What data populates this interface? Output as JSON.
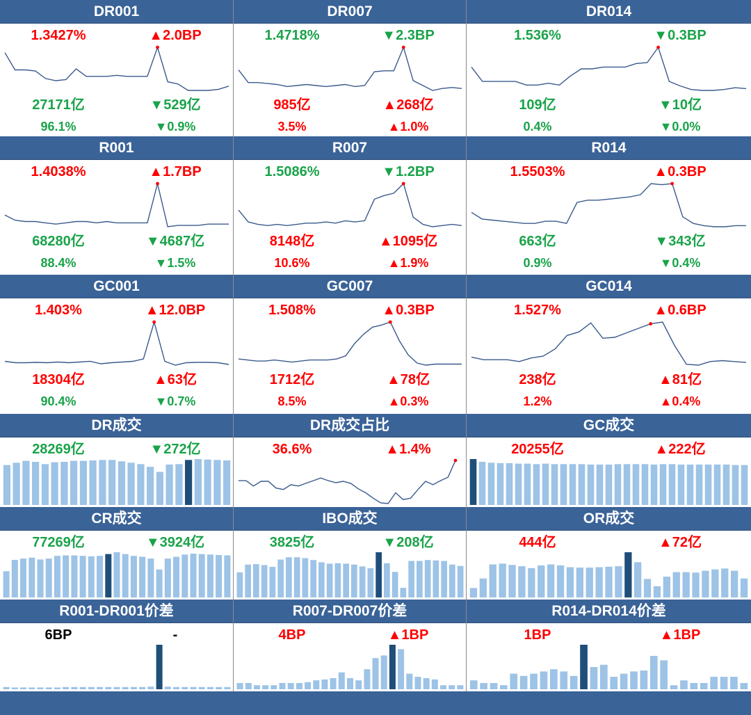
{
  "colors": {
    "header": "#3a6398",
    "line": "#3a5a8c",
    "bar": "#9dc3e6",
    "bar_highlight": "#1f4e79",
    "red": "#ff0000",
    "green": "#1aa34a",
    "marker": "#ff0000"
  },
  "panels": [
    {
      "id": "dr001",
      "title": "DR001",
      "rate": {
        "text": "1.3427%",
        "color": "red"
      },
      "change": {
        "text": "▲2.0BP",
        "color": "red"
      },
      "volume": {
        "text": "27171亿",
        "color": "green"
      },
      "volume_change": {
        "text": "▼529亿",
        "color": "green"
      },
      "share": {
        "text": "96.1%",
        "color": "green"
      },
      "share_change": {
        "text": "▼0.9%",
        "color": "green"
      },
      "chart_data": {
        "type": "line",
        "values": [
          1.338,
          1.322,
          1.322,
          1.321,
          1.314,
          1.312,
          1.313,
          1.323,
          1.316,
          1.316,
          1.316,
          1.317,
          1.316,
          1.316,
          1.316,
          1.343,
          1.311,
          1.309,
          1.303,
          1.303,
          1.303,
          1.304,
          1.307
        ],
        "marker_index": 15
      }
    },
    {
      "id": "dr007",
      "title": "DR007",
      "rate": {
        "text": "1.4718%",
        "color": "green"
      },
      "change": {
        "text": "▼2.3BP",
        "color": "green"
      },
      "volume": {
        "text": "985亿",
        "color": "red"
      },
      "volume_change": {
        "text": "▲268亿",
        "color": "red"
      },
      "share": {
        "text": "3.5%",
        "color": "red"
      },
      "share_change": {
        "text": "▲1.0%",
        "color": "red"
      },
      "chart_data": {
        "type": "line",
        "values": [
          1.449,
          1.436,
          1.436,
          1.435,
          1.434,
          1.432,
          1.433,
          1.434,
          1.433,
          1.432,
          1.433,
          1.434,
          1.432,
          1.433,
          1.447,
          1.448,
          1.448,
          1.472,
          1.438,
          1.433,
          1.428,
          1.43,
          1.431,
          1.43
        ],
        "marker_index": 17
      }
    },
    {
      "id": "dr014",
      "title": "DR014",
      "rate": {
        "text": "1.536%",
        "color": "green"
      },
      "change": {
        "text": "▼0.3BP",
        "color": "green"
      },
      "volume": {
        "text": "109亿",
        "color": "green"
      },
      "volume_change": {
        "text": "▼10亿",
        "color": "green"
      },
      "share": {
        "text": "0.4%",
        "color": "green"
      },
      "share_change": {
        "text": "▼0.0%",
        "color": "green"
      },
      "chart_data": {
        "type": "line",
        "values": [
          1.514,
          1.498,
          1.498,
          1.498,
          1.498,
          1.494,
          1.494,
          1.496,
          1.494,
          1.504,
          1.512,
          1.512,
          1.514,
          1.514,
          1.514,
          1.518,
          1.519,
          1.536,
          1.498,
          1.493,
          1.489,
          1.488,
          1.488,
          1.489,
          1.491,
          1.49
        ],
        "marker_index": 17
      }
    },
    {
      "id": "r001",
      "title": "R001",
      "rate": {
        "text": "1.4038%",
        "color": "red"
      },
      "change": {
        "text": "▲1.7BP",
        "color": "red"
      },
      "volume": {
        "text": "68280亿",
        "color": "green"
      },
      "volume_change": {
        "text": "▼4687亿",
        "color": "green"
      },
      "share": {
        "text": "88.4%",
        "color": "green"
      },
      "share_change": {
        "text": "▼1.5%",
        "color": "green"
      },
      "chart_data": {
        "type": "line",
        "values": [
          1.38,
          1.376,
          1.375,
          1.375,
          1.374,
          1.373,
          1.374,
          1.375,
          1.375,
          1.374,
          1.375,
          1.374,
          1.374,
          1.374,
          1.374,
          1.404,
          1.371,
          1.372,
          1.372,
          1.372,
          1.373,
          1.373,
          1.373
        ],
        "marker_index": 15
      }
    },
    {
      "id": "r007",
      "title": "R007",
      "rate": {
        "text": "1.5086%",
        "color": "green"
      },
      "change": {
        "text": "▼1.2BP",
        "color": "green"
      },
      "volume": {
        "text": "8148亿",
        "color": "red"
      },
      "volume_change": {
        "text": "▲1095亿",
        "color": "red"
      },
      "share": {
        "text": "10.6%",
        "color": "red"
      },
      "share_change": {
        "text": "▲1.9%",
        "color": "red"
      },
      "chart_data": {
        "type": "line",
        "values": [
          1.486,
          1.476,
          1.474,
          1.473,
          1.474,
          1.473,
          1.474,
          1.475,
          1.475,
          1.476,
          1.475,
          1.477,
          1.476,
          1.477,
          1.495,
          1.498,
          1.5,
          1.508,
          1.48,
          1.474,
          1.472,
          1.473,
          1.474,
          1.473
        ],
        "marker_index": 17
      }
    },
    {
      "id": "r014",
      "title": "R014",
      "rate": {
        "text": "1.5503%",
        "color": "red"
      },
      "change": {
        "text": "▲0.3BP",
        "color": "red"
      },
      "volume": {
        "text": "663亿",
        "color": "green"
      },
      "volume_change": {
        "text": "▼343亿",
        "color": "green"
      },
      "share": {
        "text": "0.9%",
        "color": "green"
      },
      "share_change": {
        "text": "▼0.4%",
        "color": "green"
      },
      "chart_data": {
        "type": "line",
        "values": [
          1.524,
          1.518,
          1.517,
          1.516,
          1.515,
          1.514,
          1.514,
          1.516,
          1.516,
          1.514,
          1.533,
          1.535,
          1.535,
          1.536,
          1.537,
          1.538,
          1.54,
          1.55,
          1.549,
          1.55,
          1.52,
          1.514,
          1.512,
          1.511,
          1.511,
          1.512,
          1.512
        ],
        "marker_index": 19
      }
    },
    {
      "id": "gc001",
      "title": "GC001",
      "rate": {
        "text": "1.403%",
        "color": "red"
      },
      "change": {
        "text": "▲12.0BP",
        "color": "red"
      },
      "volume": {
        "text": "18304亿",
        "color": "red"
      },
      "volume_change": {
        "text": "▲63亿",
        "color": "red"
      },
      "share": {
        "text": "90.4%",
        "color": "green"
      },
      "share_change": {
        "text": "▼0.7%",
        "color": "green"
      },
      "chart_data": {
        "type": "line",
        "values": [
          1.29,
          1.286,
          1.286,
          1.287,
          1.286,
          1.288,
          1.286,
          1.288,
          1.29,
          1.283,
          1.286,
          1.288,
          1.29,
          1.297,
          1.403,
          1.29,
          1.279,
          1.286,
          1.287,
          1.287,
          1.286,
          1.281
        ],
        "marker_index": 14
      }
    },
    {
      "id": "gc007",
      "title": "GC007",
      "rate": {
        "text": "1.508%",
        "color": "red"
      },
      "change": {
        "text": "▲0.3BP",
        "color": "red"
      },
      "volume": {
        "text": "1712亿",
        "color": "red"
      },
      "volume_change": {
        "text": "▲78亿",
        "color": "red"
      },
      "share": {
        "text": "8.5%",
        "color": "red"
      },
      "share_change": {
        "text": "▲0.3%",
        "color": "red"
      },
      "chart_data": {
        "type": "line",
        "values": [
          1.472,
          1.471,
          1.47,
          1.47,
          1.471,
          1.47,
          1.469,
          1.47,
          1.471,
          1.471,
          1.471,
          1.472,
          1.475,
          1.487,
          1.496,
          1.503,
          1.505,
          1.508,
          1.49,
          1.476,
          1.468,
          1.466,
          1.467,
          1.467,
          1.467,
          1.467
        ],
        "marker_index": 17
      }
    },
    {
      "id": "gc014",
      "title": "GC014",
      "rate": {
        "text": "1.527%",
        "color": "red"
      },
      "change": {
        "text": "▲0.6BP",
        "color": "red"
      },
      "volume": {
        "text": "238亿",
        "color": "red"
      },
      "volume_change": {
        "text": "▲81亿",
        "color": "red"
      },
      "share": {
        "text": "1.2%",
        "color": "red"
      },
      "share_change": {
        "text": "▲0.4%",
        "color": "red"
      },
      "chart_data": {
        "type": "line",
        "values": [
          1.49,
          1.487,
          1.487,
          1.487,
          1.485,
          1.489,
          1.491,
          1.499,
          1.514,
          1.518,
          1.528,
          1.511,
          1.512,
          1.517,
          1.522,
          1.527,
          1.529,
          1.503,
          1.482,
          1.481,
          1.485,
          1.486,
          1.485,
          1.484
        ],
        "marker_index": 15
      }
    },
    {
      "id": "dr-volume",
      "title": "DR成交",
      "rate": {
        "text": "28269亿",
        "color": "green"
      },
      "change": {
        "text": "▼272亿",
        "color": "green"
      },
      "chart_data": {
        "type": "bar",
        "values": [
          87,
          92,
          96,
          94,
          89,
          93,
          94,
          96,
          96,
          97,
          98,
          98,
          95,
          92,
          89,
          83,
          72,
          88,
          89,
          98,
          100,
          99,
          98,
          97
        ],
        "highlight_index": 19
      }
    },
    {
      "id": "dr-share",
      "title": "DR成交占比",
      "rate": {
        "text": "36.6%",
        "color": "red"
      },
      "change": {
        "text": "▲1.4%",
        "color": "red"
      },
      "chart_data": {
        "type": "line",
        "values": [
          33.6,
          33.6,
          32.8,
          33.5,
          33.5,
          32.5,
          32.3,
          33.0,
          32.8,
          33.2,
          33.6,
          34.0,
          33.6,
          33.3,
          33.5,
          33.2,
          32.4,
          31.8,
          31.0,
          30.3,
          30.2,
          31.8,
          30.8,
          31.0,
          32.3,
          33.5,
          33.0,
          33.6,
          34.1,
          36.6
        ],
        "marker_index": 29
      }
    },
    {
      "id": "gc-volume",
      "title": "GC成交",
      "rate": {
        "text": "20255亿",
        "color": "red"
      },
      "change": {
        "text": "▲222亿",
        "color": "red"
      },
      "chart_data": {
        "type": "bar",
        "values": [
          100,
          94,
          92,
          91,
          91,
          90,
          90,
          89,
          90,
          89,
          89,
          89,
          89,
          88,
          88,
          88,
          89,
          89,
          89,
          89,
          88,
          89,
          89,
          88,
          88,
          88,
          88,
          88,
          88,
          87,
          87
        ],
        "highlight_index": 0
      }
    },
    {
      "id": "cr-volume",
      "title": "CR成交",
      "rate": {
        "text": "77269亿",
        "color": "green"
      },
      "change": {
        "text": "▼3924亿",
        "color": "green"
      },
      "chart_data": {
        "type": "bar",
        "values": [
          58,
          83,
          86,
          88,
          84,
          86,
          92,
          93,
          93,
          92,
          91,
          92,
          96,
          100,
          96,
          92,
          90,
          86,
          62,
          86,
          90,
          95,
          97,
          96,
          95,
          94,
          93
        ],
        "highlight_index": 12
      }
    },
    {
      "id": "ibo-volume",
      "title": "IBO成交",
      "rate": {
        "text": "3825亿",
        "color": "green"
      },
      "change": {
        "text": "▼208亿",
        "color": "green"
      },
      "chart_data": {
        "type": "bar",
        "values": [
          55,
          72,
          73,
          71,
          67,
          83,
          88,
          88,
          86,
          82,
          77,
          74,
          75,
          74,
          72,
          68,
          64,
          99,
          75,
          56,
          21,
          80,
          80,
          82,
          81,
          80,
          72,
          69
        ],
        "highlight_index": 17
      }
    },
    {
      "id": "or-volume",
      "title": "OR成交",
      "rate": {
        "text": "444亿",
        "color": "red"
      },
      "change": {
        "text": "▲72亿",
        "color": "red"
      },
      "chart_data": {
        "type": "bar",
        "values": [
          21,
          42,
          73,
          75,
          72,
          69,
          65,
          71,
          73,
          71,
          67,
          66,
          66,
          67,
          68,
          69,
          100,
          78,
          41,
          25,
          46,
          56,
          56,
          55,
          59,
          62,
          64,
          59,
          42
        ],
        "highlight_index": 16
      }
    },
    {
      "id": "r001-dr001-spread",
      "title": "R001-DR001价差",
      "rate": {
        "text": "6BP",
        "color": "black"
      },
      "change": {
        "text": "-",
        "color": "black"
      },
      "chart_data": {
        "type": "bar",
        "values": [
          5,
          4,
          4,
          4,
          4,
          4,
          4,
          5,
          5,
          5,
          5,
          5,
          5,
          5,
          5,
          5,
          5,
          6,
          100,
          6,
          5,
          5,
          5,
          5,
          5,
          5,
          5
        ],
        "highlight_index": 18
      }
    },
    {
      "id": "r007-dr007-spread",
      "title": "R007-DR007价差",
      "rate": {
        "text": "4BP",
        "color": "red"
      },
      "change": {
        "text": "▲1BP",
        "color": "red"
      },
      "chart_data": {
        "type": "bar",
        "values": [
          14,
          14,
          9,
          9,
          9,
          14,
          14,
          14,
          16,
          20,
          22,
          25,
          38,
          25,
          20,
          45,
          70,
          76,
          100,
          90,
          35,
          28,
          25,
          22,
          9,
          9,
          9
        ],
        "highlight_index": 18
      }
    },
    {
      "id": "r014-dr014-spread",
      "title": "R014-DR014价差",
      "rate": {
        "text": "1BP",
        "color": "red"
      },
      "change": {
        "text": "▲1BP",
        "color": "red"
      },
      "chart_data": {
        "type": "bar",
        "values": [
          20,
          14,
          14,
          9,
          35,
          30,
          35,
          40,
          45,
          40,
          30,
          100,
          50,
          55,
          28,
          35,
          40,
          42,
          75,
          65,
          9,
          20,
          14,
          14,
          28,
          28,
          28,
          14
        ],
        "highlight_index": 11
      }
    }
  ]
}
